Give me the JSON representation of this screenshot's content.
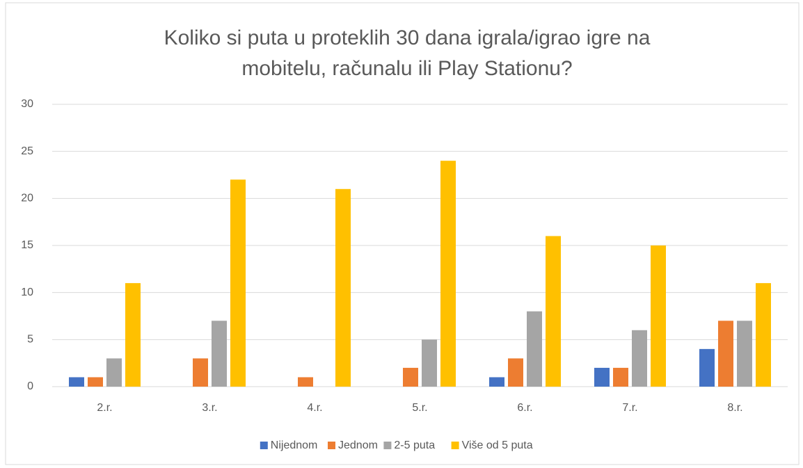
{
  "chart_data": {
    "type": "bar",
    "title": [
      "Koliko si puta u proteklih 30 dana igrala/igrao igre na",
      "mobitelu, računalu ili Play Stationu?"
    ],
    "categories": [
      "2.r.",
      "3.r.",
      "4.r.",
      "5.r.",
      "6.r.",
      "7.r.",
      "8.r."
    ],
    "series": [
      {
        "name": "Nijednom",
        "color": "#4472c4",
        "values": [
          1,
          0,
          0,
          0,
          1,
          2,
          4
        ]
      },
      {
        "name": "Jednom",
        "color": "#ed7d31",
        "values": [
          1,
          3,
          1,
          2,
          3,
          2,
          7
        ]
      },
      {
        "name": "2-5 puta",
        "color": "#a5a5a5",
        "values": [
          3,
          7,
          0,
          5,
          8,
          6,
          7
        ]
      },
      {
        "name": "Više od 5 puta",
        "color": "#ffc000",
        "values": [
          11,
          22,
          21,
          24,
          16,
          15,
          11
        ]
      }
    ],
    "ylim": [
      0,
      30
    ],
    "yticks": [
      0,
      5,
      10,
      15,
      20,
      25,
      30
    ],
    "grid": true,
    "legend": "bottom"
  }
}
